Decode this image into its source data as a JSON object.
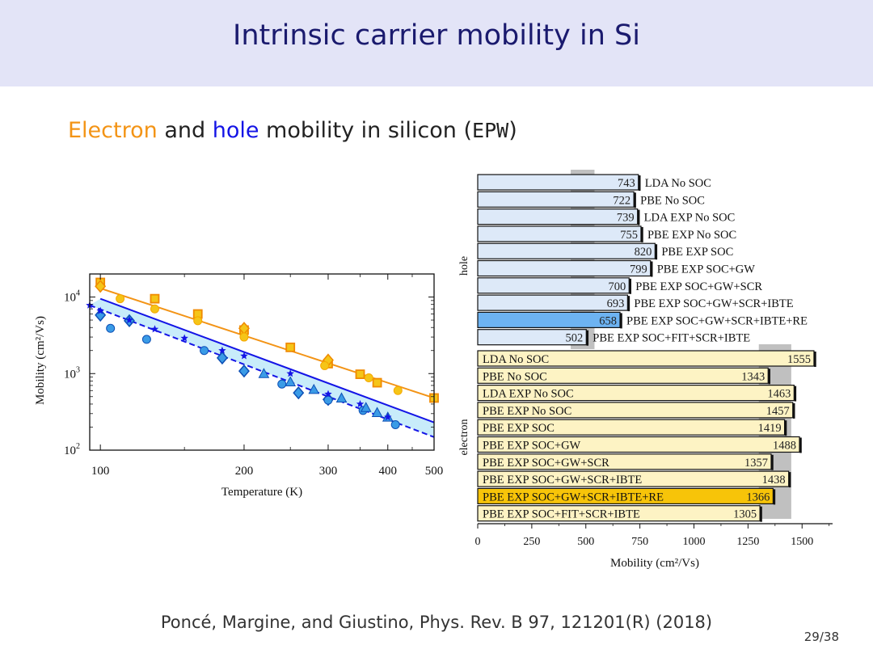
{
  "slide": {
    "title": "Intrinsic carrier mobility in Si",
    "subtitle_parts": [
      "Electron",
      " and ",
      "hole",
      " mobility in silicon (",
      "EPW",
      ")"
    ],
    "citation": "Poncé, Margine, and Giustino, Phys. Rev. B 97, 121201(R) (2018)",
    "page": "29/38"
  },
  "colors": {
    "electron": "#f39416",
    "hole": "#1414e6",
    "title": "#1a1a6e"
  },
  "chart_data": [
    {
      "type": "scatter",
      "title": "",
      "xlabel": "Temperature (K)",
      "ylabel": "Mobility (cm²/Vs)",
      "xscale": "log",
      "yscale": "log",
      "xlim": [
        95,
        500
      ],
      "ylim": [
        100,
        20000
      ],
      "xticks": [
        "100",
        "200",
        "300",
        "400",
        "500"
      ],
      "xtick_values": [
        100,
        200,
        300,
        400,
        500
      ],
      "yticks": [
        "10²",
        "10³",
        "10⁴"
      ],
      "ytick_values": [
        100,
        1000,
        10000
      ],
      "series": [
        {
          "name": "electron theory",
          "kind": "line",
          "color": "#f39416",
          "x": [
            100,
            500
          ],
          "y": [
            13000,
            480
          ]
        },
        {
          "name": "hole theory",
          "kind": "line",
          "color": "#1414e6",
          "x": [
            100,
            500
          ],
          "y": [
            9500,
            230
          ]
        },
        {
          "name": "hole theory (dashed)",
          "kind": "dashed",
          "color": "#1414e6",
          "x": [
            95,
            500
          ],
          "y": [
            7800,
            148
          ]
        },
        {
          "name": "electron squares",
          "kind": "marker",
          "marker": "square",
          "color": "#f5c518",
          "x": [
            100,
            130,
            160,
            200,
            250,
            300,
            350,
            380,
            500
          ],
          "y": [
            15500,
            9500,
            6000,
            3700,
            2200,
            1350,
            980,
            760,
            480
          ]
        },
        {
          "name": "electron diamonds",
          "kind": "marker",
          "marker": "diamond",
          "color": "#f5c518",
          "x": [
            100,
            200,
            300
          ],
          "y": [
            13800,
            3900,
            1500
          ]
        },
        {
          "name": "electron circles",
          "kind": "marker",
          "marker": "circle",
          "color": "#f5c518",
          "x": [
            110,
            130,
            160,
            200,
            295,
            365,
            420
          ],
          "y": [
            9500,
            7000,
            4900,
            3000,
            1270,
            880,
            600
          ]
        },
        {
          "name": "hole diamonds",
          "kind": "marker",
          "marker": "diamond",
          "color": "#3a9be6",
          "x": [
            100,
            115,
            180,
            200,
            260,
            300
          ],
          "y": [
            5800,
            4900,
            1600,
            1080,
            560,
            460
          ]
        },
        {
          "name": "hole circles",
          "kind": "marker",
          "marker": "circle",
          "color": "#3a9be6",
          "x": [
            105,
            125,
            165,
            240,
            300,
            355,
            415
          ],
          "y": [
            3900,
            2800,
            2000,
            730,
            450,
            330,
            215
          ]
        },
        {
          "name": "hole triangles",
          "kind": "marker",
          "marker": "triangle",
          "color": "#3a9be6",
          "x": [
            220,
            250,
            280,
            320,
            360,
            380,
            400
          ],
          "y": [
            1000,
            780,
            620,
            480,
            360,
            310,
            270
          ]
        },
        {
          "name": "hole stars",
          "kind": "marker",
          "marker": "star",
          "color": "#1414e6",
          "x": [
            95,
            100,
            115,
            130,
            150,
            180,
            200,
            250,
            300,
            350,
            400
          ],
          "y": [
            7800,
            6600,
            5000,
            3800,
            2900,
            2000,
            1700,
            1000,
            540,
            400,
            270
          ]
        }
      ]
    },
    {
      "type": "bar",
      "orientation": "horizontal",
      "title": "",
      "xlabel": "Mobility (cm²/Vs)",
      "xlim": [
        0,
        1650
      ],
      "xticks": [
        "0",
        "250",
        "500",
        "750",
        "1000",
        "1250",
        "1500"
      ],
      "xtick_values": [
        0,
        250,
        500,
        750,
        1000,
        1250,
        1500
      ],
      "groups": [
        {
          "name": "hole",
          "label": "hole",
          "label_position": "outside-right",
          "experiment_band": [
            430,
            540
          ],
          "fill": "#dde9f8",
          "highlight_fill": "#6db3f2",
          "bars": [
            {
              "label": "LDA No SOC",
              "value": 743
            },
            {
              "label": "PBE No SOC",
              "value": 722
            },
            {
              "label": "LDA EXP No SOC",
              "value": 739
            },
            {
              "label": "PBE EXP No SOC",
              "value": 755
            },
            {
              "label": "PBE EXP SOC",
              "value": 820
            },
            {
              "label": "PBE EXP SOC+GW",
              "value": 799
            },
            {
              "label": "PBE EXP SOC+GW+SCR",
              "value": 700
            },
            {
              "label": "PBE EXP SOC+GW+SCR+IBTE",
              "value": 693
            },
            {
              "label": "PBE EXP SOC+GW+SCR+IBTE+RE",
              "value": 658,
              "highlight": true
            },
            {
              "label": "PBE EXP SOC+FIT+SCR+IBTE",
              "value": 502
            }
          ]
        },
        {
          "name": "electron",
          "label": "electron",
          "label_position": "inside-left",
          "experiment_band": [
            1300,
            1450
          ],
          "fill": "#fdf3c4",
          "highlight_fill": "#f7c409",
          "bars": [
            {
              "label": "LDA No SOC",
              "value": 1555
            },
            {
              "label": "PBE No SOC",
              "value": 1343
            },
            {
              "label": "LDA EXP No SOC",
              "value": 1463
            },
            {
              "label": "PBE EXP No SOC",
              "value": 1457
            },
            {
              "label": "PBE EXP SOC",
              "value": 1419
            },
            {
              "label": "PBE EXP SOC+GW",
              "value": 1488
            },
            {
              "label": "PBE EXP SOC+GW+SCR",
              "value": 1357
            },
            {
              "label": "PBE EXP SOC+GW+SCR+IBTE",
              "value": 1438
            },
            {
              "label": "PBE EXP SOC+GW+SCR+IBTE+RE",
              "value": 1366,
              "highlight": true
            },
            {
              "label": "PBE EXP SOC+FIT+SCR+IBTE",
              "value": 1305
            }
          ]
        }
      ]
    }
  ]
}
